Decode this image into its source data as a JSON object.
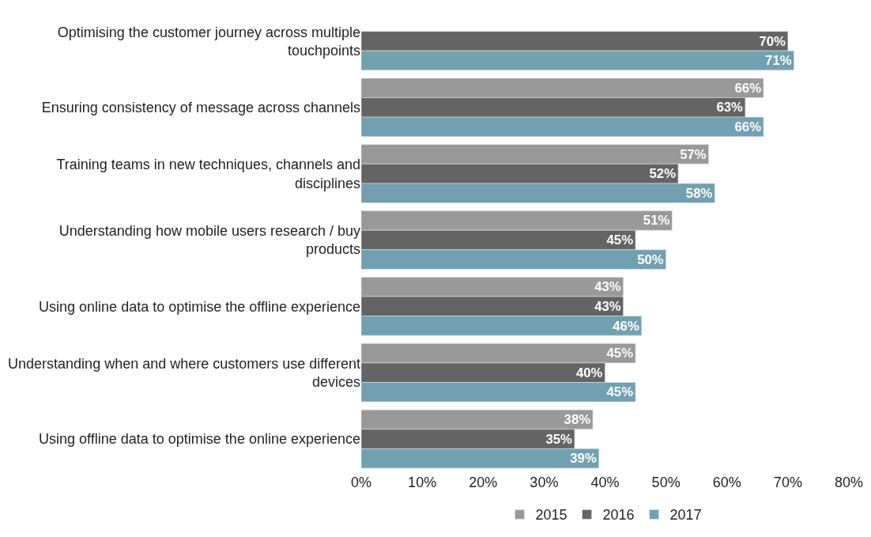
{
  "chart_data": {
    "type": "bar",
    "orientation": "horizontal",
    "categories": [
      "Optimising the customer journey across multiple touchpoints",
      "Ensuring consistency of message across channels",
      "Training teams in new techniques, channels and disciplines",
      "Understanding how mobile users research / buy products",
      "Using online data to optimise the offline experience",
      "Understanding when and where customers use different devices",
      "Using offline data to optimise the online experience"
    ],
    "series": [
      {
        "name": "2015",
        "color": "#999999",
        "values": [
          null,
          66,
          57,
          51,
          43,
          45,
          38
        ],
        "value_labels": [
          null,
          "66%",
          "57%",
          "51%",
          "43%",
          "45%",
          "38%"
        ]
      },
      {
        "name": "2016",
        "color": "#646464",
        "values": [
          70,
          63,
          52,
          45,
          43,
          40,
          35
        ],
        "value_labels": [
          "70%",
          "63%",
          "52%",
          "45%",
          "43%",
          "40%",
          "35%"
        ]
      },
      {
        "name": "2017",
        "color": "#72a0b0",
        "values": [
          71,
          66,
          58,
          50,
          46,
          45,
          39
        ],
        "value_labels": [
          "71%",
          "66%",
          "58%",
          "50%",
          "46%",
          "45%",
          "39%"
        ]
      }
    ],
    "xlim": [
      0,
      80
    ],
    "xticks": [
      {
        "value": 0,
        "label": "0%"
      },
      {
        "value": 10,
        "label": "10%"
      },
      {
        "value": 20,
        "label": "20%"
      },
      {
        "value": 30,
        "label": "30%"
      },
      {
        "value": 40,
        "label": "40%"
      },
      {
        "value": 50,
        "label": "50%"
      },
      {
        "value": 60,
        "label": "60%"
      },
      {
        "value": 70,
        "label": "70%"
      },
      {
        "value": 80,
        "label": "80%"
      }
    ],
    "legend": "bottom"
  }
}
